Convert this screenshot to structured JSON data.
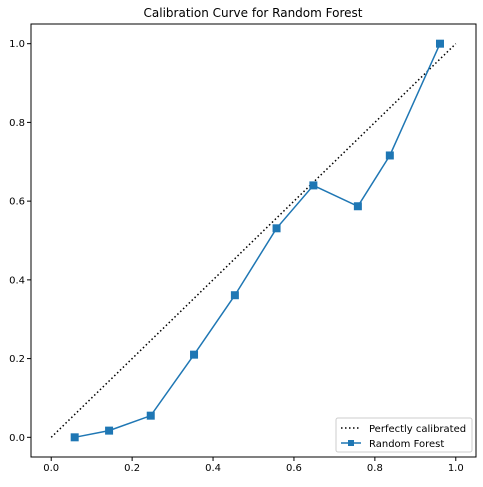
{
  "colors": {
    "series": "#1f77b4",
    "reference": "#000000",
    "axes": "#000000",
    "legend_border": "#cccccc"
  },
  "chart_data": {
    "type": "line",
    "title": "Calibration Curve for Random Forest",
    "xlabel": "",
    "ylabel": "",
    "xlim": [
      -0.05,
      1.05
    ],
    "ylim": [
      -0.05,
      1.05
    ],
    "xticks": [
      0.0,
      0.2,
      0.4,
      0.6,
      0.8,
      1.0
    ],
    "yticks": [
      0.0,
      0.2,
      0.4,
      0.6,
      0.8,
      1.0
    ],
    "xtick_labels": [
      "0.0",
      "0.2",
      "0.4",
      "0.6",
      "0.8",
      "1.0"
    ],
    "ytick_labels": [
      "0.0",
      "0.2",
      "0.4",
      "0.6",
      "0.8",
      "1.0"
    ],
    "grid": false,
    "legend_position": "lower-right",
    "series": [
      {
        "name": "Perfectly calibrated",
        "style": "dotted",
        "marker": "none",
        "x": [
          0.0,
          1.0
        ],
        "y": [
          0.0,
          1.0
        ]
      },
      {
        "name": "Random Forest",
        "style": "solid",
        "marker": "square",
        "x": [
          0.058,
          0.143,
          0.246,
          0.353,
          0.454,
          0.557,
          0.648,
          0.758,
          0.837,
          0.961
        ],
        "y": [
          0.0,
          0.017,
          0.055,
          0.21,
          0.361,
          0.531,
          0.64,
          0.587,
          0.716,
          1.0
        ]
      }
    ]
  }
}
